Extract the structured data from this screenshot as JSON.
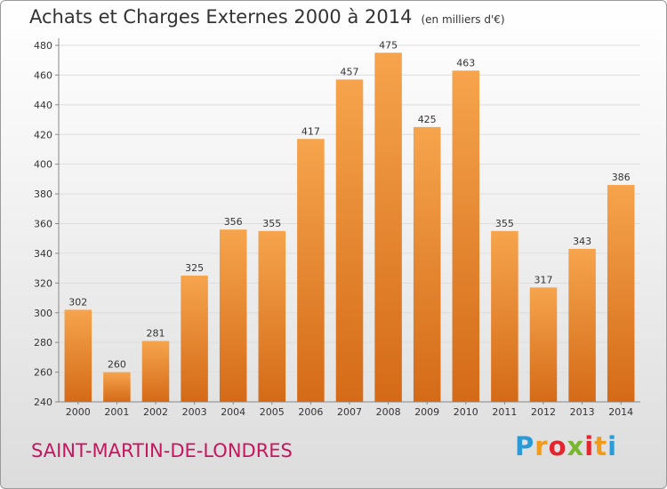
{
  "header": {
    "title": "Achats et Charges Externes 2000 à 2014",
    "subtitle": "(en milliers d'€)"
  },
  "footer": {
    "place": "SAINT-MARTIN-DE-LONDRES",
    "logo_letters": [
      "P",
      "r",
      "o",
      "x",
      "i",
      "t",
      "i"
    ],
    "logo_colors": [
      "#2a9bd6",
      "#f29a1a",
      "#e3262d",
      "#7ab62f",
      "#e3262d",
      "#f29a1a",
      "#2a9bd6"
    ]
  },
  "colors": {
    "bar_light": "#f6a44d",
    "bar_dark": "#d46a17",
    "grid": "#dddddd",
    "axis": "#888888"
  },
  "chart_data": {
    "type": "bar",
    "title": "Achats et Charges Externes 2000 à 2014",
    "subtitle": "(en milliers d'€)",
    "categories": [
      "2000",
      "2001",
      "2002",
      "2003",
      "2004",
      "2005",
      "2006",
      "2007",
      "2008",
      "2009",
      "2010",
      "2011",
      "2012",
      "2013",
      "2014"
    ],
    "values": [
      302,
      260,
      281,
      325,
      356,
      355,
      417,
      457,
      475,
      425,
      463,
      355,
      317,
      343,
      386
    ],
    "ylim": [
      240,
      480
    ],
    "yticks": [
      240,
      260,
      280,
      300,
      320,
      340,
      360,
      380,
      400,
      420,
      440,
      460,
      480
    ],
    "grid": true,
    "legend": "none"
  }
}
